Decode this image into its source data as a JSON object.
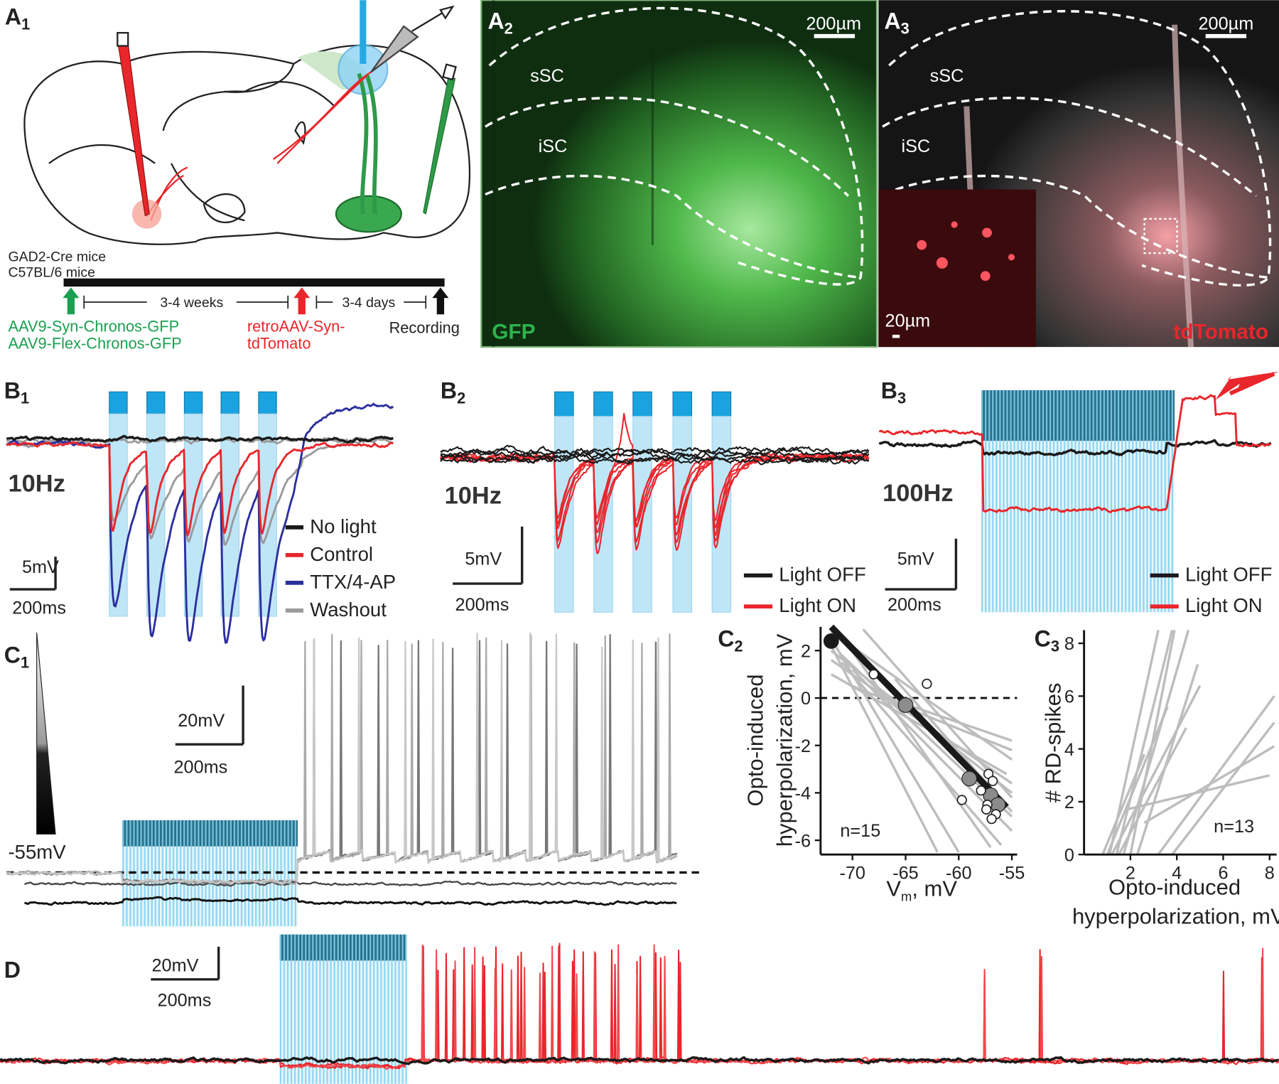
{
  "panels": {
    "A1": {
      "label": {
        "letter": "A",
        "number": "1"
      },
      "mice": [
        "GAD2-Cre mice",
        "C57BL/6 mice"
      ],
      "interval_1": "3-4 weeks",
      "interval_2": "3-4 days",
      "injection_1": [
        "AAV9-Syn-Chronos-GFP",
        "AAV9-Flex-Chronos-GFP"
      ],
      "injection_2": [
        "retroAAV-Syn-",
        "tdTomato"
      ],
      "recording": "Recording"
    },
    "A2": {
      "label": {
        "letter": "A",
        "number": "2"
      },
      "scale_bar": "200µm",
      "regions": [
        "sSC",
        "iSC"
      ],
      "channel": "GFP"
    },
    "A3": {
      "label": {
        "letter": "A",
        "number": "3"
      },
      "scale_bar": "200µm",
      "regions": [
        "sSC",
        "iSC"
      ],
      "inset_scale_bar": "20µm",
      "channel": "tdTomato"
    },
    "B1": {
      "label": {
        "letter": "B",
        "number": "1"
      },
      "frequency": "10Hz",
      "scale_y": "5mV",
      "scale_x": "200ms",
      "legend": [
        {
          "name": "No light",
          "color": "#1a1a1a"
        },
        {
          "name": "Control",
          "color": "#e8262b"
        },
        {
          "name": "TTX/4-AP",
          "color": "#2b2f9e"
        },
        {
          "name": "Washout",
          "color": "#9a9a9a"
        }
      ]
    },
    "B2": {
      "label": {
        "letter": "B",
        "number": "2"
      },
      "frequency": "10Hz",
      "scale_y": "5mV",
      "scale_x": "200ms",
      "legend": [
        {
          "name": "Light OFF",
          "color": "#1a1a1a"
        },
        {
          "name": "Light ON",
          "color": "#e8262b"
        }
      ]
    },
    "B3": {
      "label": {
        "letter": "B",
        "number": "3"
      },
      "frequency": "100Hz",
      "scale_y": "5mV",
      "scale_x": "200ms",
      "legend": [
        {
          "name": "Light OFF",
          "color": "#1a1a1a"
        },
        {
          "name": "Light ON",
          "color": "#e8262b"
        }
      ]
    },
    "C1": {
      "label": {
        "letter": "C",
        "number": "1"
      },
      "scale_y": "20mV",
      "scale_x": "200ms",
      "holding": "-55mV"
    },
    "C2": {
      "label": {
        "letter": "C",
        "number": "2"
      }
    },
    "C3": {
      "label": {
        "letter": "C",
        "number": "3"
      }
    },
    "D": {
      "label": {
        "letter": "D"
      },
      "scale_y": "20mV",
      "scale_x": "200ms"
    }
  },
  "chart_data": [
    {
      "type": "line",
      "y_label": [
        "Opto-induced",
        "hyperpolarization, mV"
      ],
      "x_label": {
        "main": "V",
        "sub": "m",
        "unit": ", mV"
      },
      "annotation": "n=15",
      "xlim": [
        -73,
        -54.5
      ],
      "ylim": [
        -6.6,
        3
      ],
      "xticks": [
        -70,
        -65,
        -60,
        -55
      ],
      "yticks": [
        -6,
        -4,
        -2,
        0,
        2
      ],
      "reference_line": 0,
      "series": [
        {
          "mode": "line",
          "color": "#bdbdbd",
          "x": [
            -72,
            -55
          ],
          "values": [
            2.8,
            -2.6
          ]
        },
        {
          "mode": "line",
          "color": "#bdbdbd",
          "x": [
            -72,
            -55
          ],
          "values": [
            2.0,
            -4.0
          ]
        },
        {
          "mode": "line",
          "color": "#bdbdbd",
          "x": [
            -71,
            -56
          ],
          "values": [
            1.5,
            -6.2
          ]
        },
        {
          "mode": "line",
          "color": "#bdbdbd",
          "x": [
            -72,
            -55.5
          ],
          "values": [
            1.0,
            -3.2
          ]
        },
        {
          "mode": "line",
          "color": "#bdbdbd",
          "x": [
            -70,
            -55
          ],
          "values": [
            0.5,
            -2.2
          ]
        },
        {
          "mode": "line",
          "color": "#bdbdbd",
          "x": [
            -72,
            -60
          ],
          "values": [
            2.5,
            -6.5
          ]
        },
        {
          "mode": "line",
          "color": "#bdbdbd",
          "x": [
            -72,
            -62
          ],
          "values": [
            2.2,
            -6.5
          ]
        },
        {
          "mode": "line",
          "color": "#bdbdbd",
          "x": [
            -71,
            -55
          ],
          "values": [
            1.8,
            -5.0
          ]
        },
        {
          "mode": "line",
          "color": "#bdbdbd",
          "x": [
            -66,
            -55
          ],
          "values": [
            0.8,
            -4.8
          ]
        },
        {
          "mode": "line",
          "color": "#bdbdbd",
          "x": [
            -70,
            -55
          ],
          "values": [
            1.2,
            -5.6
          ]
        },
        {
          "mode": "line",
          "color": "#bdbdbd",
          "x": [
            -68,
            -55
          ],
          "values": [
            0.2,
            -1.8
          ]
        },
        {
          "mode": "line",
          "color": "#bdbdbd",
          "x": [
            -71,
            -57
          ],
          "values": [
            2.6,
            -6.3
          ]
        },
        {
          "mode": "line",
          "color": "#bdbdbd",
          "x": [
            -72,
            -55
          ],
          "values": [
            1.6,
            -3.6
          ]
        },
        {
          "mode": "line",
          "color": "#bdbdbd",
          "x": [
            -69,
            -55
          ],
          "values": [
            2.9,
            -4.2
          ]
        },
        {
          "mode": "fit",
          "color": "#1a1a1a",
          "x": [
            -72,
            -55.5
          ],
          "values": [
            3.0,
            -4.6
          ]
        },
        {
          "mode": "markers",
          "color": "#8c8c8c",
          "x": [
            -65,
            -59,
            -57,
            -56.3
          ],
          "values": [
            -0.3,
            -3.4,
            -4.1,
            -4.5
          ]
        },
        {
          "mode": "markers",
          "color": "#1a1a1a",
          "x": [
            -72
          ],
          "values": [
            2.4
          ]
        },
        {
          "mode": "open",
          "color": "#ffffff",
          "x": [
            -68,
            -63,
            -59.7,
            -57.9,
            -57.2,
            -56.8,
            -57.3,
            -56.5,
            -56.9,
            -57.4
          ],
          "values": [
            1.0,
            0.6,
            -4.3,
            -3.9,
            -3.2,
            -3.5,
            -4.5,
            -4.9,
            -5.1,
            -4.7
          ]
        }
      ]
    },
    {
      "type": "line",
      "y_label": [
        "# RD-spikes"
      ],
      "x_label": [
        "Opto-induced",
        "hyperpolarization, mV"
      ],
      "annotation": "n=13",
      "xlim": [
        0,
        8.3
      ],
      "ylim": [
        0,
        8.5
      ],
      "xticks": [
        2,
        4,
        6,
        8
      ],
      "yticks": [
        0,
        2,
        4,
        6,
        8
      ],
      "series": [
        {
          "mode": "line",
          "color": "#bdbdbd",
          "x": [
            1.1,
            3.2
          ],
          "values": [
            0,
            8.5
          ]
        },
        {
          "mode": "line",
          "color": "#bdbdbd",
          "x": [
            1.4,
            3.8
          ],
          "values": [
            0,
            8.5
          ]
        },
        {
          "mode": "line",
          "color": "#bdbdbd",
          "x": [
            1.7,
            4.5
          ],
          "values": [
            0,
            8.5
          ]
        },
        {
          "mode": "line",
          "color": "#bdbdbd",
          "x": [
            2.0,
            3.9
          ],
          "values": [
            0,
            8.5
          ]
        },
        {
          "mode": "line",
          "color": "#bdbdbd",
          "x": [
            1.2,
            5.0
          ],
          "values": [
            0,
            6.4
          ]
        },
        {
          "mode": "line",
          "color": "#bdbdbd",
          "x": [
            1.0,
            3.6
          ],
          "values": [
            0,
            5.6
          ]
        },
        {
          "mode": "line",
          "color": "#bdbdbd",
          "x": [
            1.5,
            4.4
          ],
          "values": [
            0,
            4.8
          ]
        },
        {
          "mode": "line",
          "color": "#bdbdbd",
          "x": [
            2.3,
            4.9
          ],
          "values": [
            0,
            7.2
          ]
        },
        {
          "mode": "line",
          "color": "#bdbdbd",
          "x": [
            3.2,
            8.2
          ],
          "values": [
            0,
            6.0
          ]
        },
        {
          "mode": "line",
          "color": "#bdbdbd",
          "x": [
            3.8,
            8.2
          ],
          "values": [
            0,
            5.0
          ]
        },
        {
          "mode": "line",
          "color": "#bdbdbd",
          "x": [
            2.6,
            8.2
          ],
          "values": [
            1.2,
            4.1
          ]
        },
        {
          "mode": "line",
          "color": "#bdbdbd",
          "x": [
            1.8,
            8.0
          ],
          "values": [
            1.7,
            3.0
          ]
        },
        {
          "mode": "line",
          "color": "#bdbdbd",
          "x": [
            0.8,
            2.6
          ],
          "values": [
            0,
            3.8
          ]
        }
      ]
    }
  ]
}
